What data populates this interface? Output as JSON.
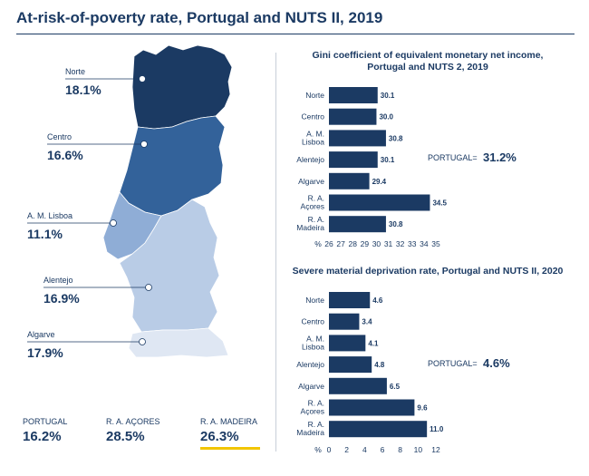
{
  "title": "At-risk-of-poverty rate, Portugal and NUTS II, 2019",
  "map": {
    "regions": [
      {
        "name": "Norte",
        "value": "18.1%",
        "color": "#1b3a63"
      },
      {
        "name": "Centro",
        "value": "16.6%",
        "color": "#33629a"
      },
      {
        "name": "A. M. Lisboa",
        "value": "11.1%",
        "color": "#8fadd6"
      },
      {
        "name": "Alentejo",
        "value": "16.9%",
        "color": "#b9cce6"
      },
      {
        "name": "Algarve",
        "value": "17.9%",
        "color": "#dfe7f3"
      }
    ]
  },
  "summary": [
    {
      "label": "PORTUGAL",
      "value": "16.2%"
    },
    {
      "label": "R. A. AÇORES",
      "value": "28.5%"
    },
    {
      "label": "R. A. MADEIRA",
      "value": "26.3%"
    }
  ],
  "chart_data": [
    {
      "type": "bar",
      "orientation": "horizontal",
      "title": [
        "Gini coefficient of equivalent monetary net income,",
        "Portugal and NUTS 2, 2019"
      ],
      "categories": [
        [
          "Norte"
        ],
        [
          "Centro"
        ],
        [
          "A. M.",
          "Lisboa"
        ],
        [
          "Alentejo"
        ],
        [
          "Algarve"
        ],
        [
          "R. A.",
          "Açores"
        ],
        [
          "R. A.",
          "Madeira"
        ]
      ],
      "values": [
        30.1,
        30.0,
        30.8,
        30.1,
        29.4,
        34.5,
        30.8
      ],
      "value_labels": [
        "30.1",
        "30.0",
        "30.8",
        "30.1",
        "29.4",
        "34.5",
        "30.8"
      ],
      "xlim": [
        26,
        35
      ],
      "ticks": [
        26,
        27,
        28,
        29,
        30,
        31,
        32,
        33,
        34,
        35
      ],
      "axis_unit": "%",
      "portugal_label": "PORTUGAL=",
      "portugal_value": "31.2%",
      "bar_color": "#1b3a63"
    },
    {
      "type": "bar",
      "orientation": "horizontal",
      "title": [
        "Severe material deprivation rate, Portugal and NUTS II, 2020"
      ],
      "categories": [
        [
          "Norte"
        ],
        [
          "Centro"
        ],
        [
          "A. M.",
          "Lisboa"
        ],
        [
          "Alentejo"
        ],
        [
          "Algarve"
        ],
        [
          "R. A.",
          "Açores"
        ],
        [
          "R. A.",
          "Madeira"
        ]
      ],
      "values": [
        4.6,
        3.4,
        4.1,
        4.8,
        6.5,
        9.6,
        11.0
      ],
      "value_labels": [
        "4.6",
        "3.4",
        "4.1",
        "4.8",
        "6.5",
        "9.6",
        "11.0"
      ],
      "xlim": [
        0,
        12
      ],
      "ticks": [
        0,
        2,
        4,
        6,
        8,
        10,
        12
      ],
      "axis_unit": "%",
      "portugal_label": "PORTUGAL=",
      "portugal_value": "4.6%",
      "bar_color": "#1b3a63"
    }
  ]
}
